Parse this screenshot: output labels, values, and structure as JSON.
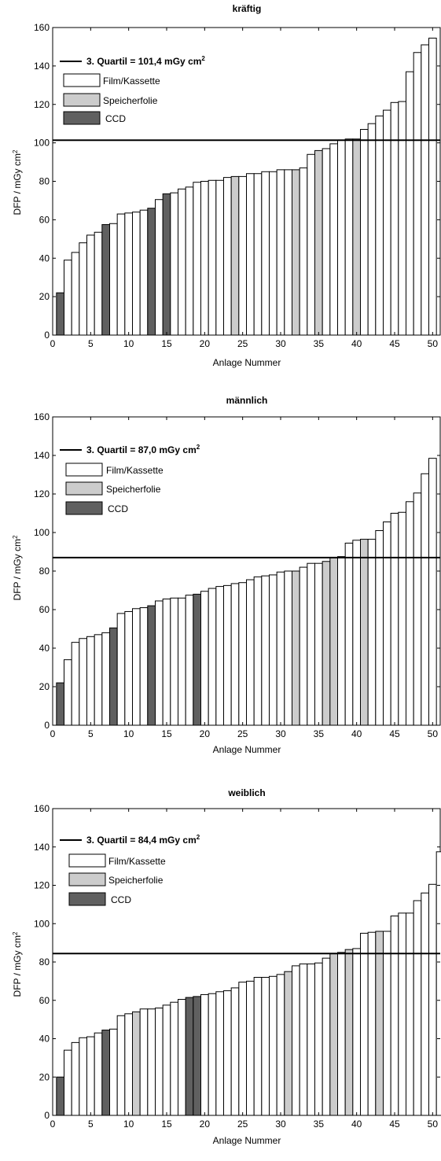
{
  "colors": {
    "film": "#ffffff",
    "speicher": "#cccccc",
    "ccd": "#606060",
    "stroke": "#000000"
  },
  "chart_data": [
    {
      "type": "bar",
      "title": "kräftig",
      "xlabel": "Anlage Nummer",
      "ylabel": "DFP / mGy cm",
      "ylabel_sup": "2",
      "xlim": [
        0,
        51
      ],
      "ylim": [
        0,
        160
      ],
      "xticks": [
        0,
        5,
        10,
        15,
        20,
        25,
        30,
        35,
        40,
        45,
        50
      ],
      "yticks": [
        0,
        20,
        40,
        60,
        80,
        100,
        120,
        140,
        160
      ],
      "legend": {
        "quartile": "3. Quartil = 101,4 mGy cm",
        "quartile_sup": "2",
        "entries": [
          "Film/Kassette",
          "Speicherfolie",
          "CCD"
        ]
      },
      "reference_line": 101.4,
      "values": [
        22,
        39,
        43,
        48,
        52,
        53.5,
        57.5,
        58,
        63,
        63.5,
        64,
        65,
        66,
        70.5,
        73.5,
        74,
        76,
        77,
        79.5,
        80,
        80.5,
        80.5,
        82,
        82.5,
        82.5,
        84,
        84,
        85,
        85,
        86,
        86,
        86,
        87,
        94,
        96,
        97,
        99.5,
        101.5,
        102,
        102,
        107,
        110,
        114,
        117,
        121,
        121.5,
        137,
        147,
        151,
        154.5
      ],
      "types": [
        "C",
        "F",
        "F",
        "F",
        "F",
        "F",
        "C",
        "F",
        "F",
        "F",
        "F",
        "F",
        "C",
        "F",
        "C",
        "F",
        "F",
        "F",
        "F",
        "F",
        "F",
        "F",
        "F",
        "S",
        "F",
        "F",
        "F",
        "F",
        "F",
        "F",
        "F",
        "S",
        "F",
        "F",
        "S",
        "F",
        "F",
        "F",
        "F",
        "S",
        "F",
        "F",
        "F",
        "F",
        "F",
        "F",
        "F",
        "F",
        "F",
        "F"
      ]
    },
    {
      "type": "bar",
      "title": "männlich",
      "xlabel": "Anlage Nummer",
      "ylabel": "DFP / mGy cm",
      "ylabel_sup": "2",
      "xlim": [
        0,
        51
      ],
      "ylim": [
        0,
        160
      ],
      "xticks": [
        0,
        5,
        10,
        15,
        20,
        25,
        30,
        35,
        40,
        45,
        50
      ],
      "yticks": [
        0,
        20,
        40,
        60,
        80,
        100,
        120,
        140,
        160
      ],
      "legend": {
        "quartile": "3. Quartil = 87,0 mGy cm",
        "quartile_sup": "2",
        "entries": [
          "Film/Kassette",
          "Speicherfolie",
          "CCD"
        ]
      },
      "reference_line": 87.0,
      "values": [
        22,
        34,
        43,
        45,
        46,
        47,
        48,
        50.5,
        58,
        59,
        60.5,
        61,
        62,
        64.5,
        65.5,
        66,
        66,
        67.5,
        68,
        69.5,
        71,
        72,
        72.5,
        73.5,
        74,
        75.5,
        77,
        77.5,
        78,
        79.5,
        80,
        80,
        82,
        84,
        84,
        85,
        87,
        87.5,
        94.5,
        96,
        96.5,
        96.5,
        101,
        105.5,
        110,
        110.5,
        116,
        120.5,
        130.5,
        138.5
      ],
      "types": [
        "C",
        "F",
        "F",
        "F",
        "F",
        "F",
        "F",
        "C",
        "F",
        "F",
        "F",
        "F",
        "C",
        "F",
        "F",
        "F",
        "F",
        "F",
        "C",
        "F",
        "F",
        "F",
        "F",
        "F",
        "F",
        "F",
        "F",
        "F",
        "F",
        "F",
        "F",
        "S",
        "F",
        "F",
        "F",
        "S",
        "S",
        "F",
        "F",
        "F",
        "S",
        "F",
        "F",
        "F",
        "F",
        "F",
        "F",
        "F",
        "F",
        "F"
      ]
    },
    {
      "type": "bar",
      "title": "weiblich",
      "xlabel": "Anlage Nummer",
      "ylabel": "DFP / mGy cm",
      "ylabel_sup": "2",
      "xlim": [
        0,
        51
      ],
      "ylim": [
        0,
        160
      ],
      "xticks": [
        0,
        5,
        10,
        15,
        20,
        25,
        30,
        35,
        40,
        45,
        50
      ],
      "yticks": [
        0,
        20,
        40,
        60,
        80,
        100,
        120,
        140,
        160
      ],
      "legend": {
        "quartile": "3. Quartil = 84,4 mGy cm",
        "quartile_sup": "2",
        "entries": [
          "Film/Kassette",
          "Speicherfolie",
          "CCD"
        ]
      },
      "reference_line": 84.4,
      "values": [
        20,
        34,
        38,
        40.5,
        41,
        43,
        44.5,
        45,
        52,
        53,
        54,
        55.5,
        55.5,
        56,
        57.5,
        59,
        60.5,
        61.5,
        62,
        63,
        63.5,
        64.5,
        65,
        66.5,
        69.5,
        70,
        72,
        72,
        72.5,
        73.5,
        75,
        78,
        79,
        79,
        79.5,
        82,
        84.5,
        85,
        86.5,
        87,
        95,
        95.5,
        96,
        96,
        104,
        105.5,
        105.5,
        112,
        116,
        120.5,
        137.5
      ],
      "types": [
        "C",
        "F",
        "F",
        "F",
        "F",
        "F",
        "C",
        "F",
        "F",
        "F",
        "S",
        "F",
        "F",
        "F",
        "F",
        "F",
        "F",
        "C",
        "C",
        "F",
        "F",
        "F",
        "F",
        "F",
        "F",
        "F",
        "F",
        "F",
        "F",
        "F",
        "S",
        "F",
        "F",
        "F",
        "F",
        "F",
        "S",
        "F",
        "S",
        "F",
        "F",
        "F",
        "S",
        "F",
        "F",
        "F",
        "F",
        "F",
        "F",
        "F",
        "F"
      ]
    }
  ]
}
